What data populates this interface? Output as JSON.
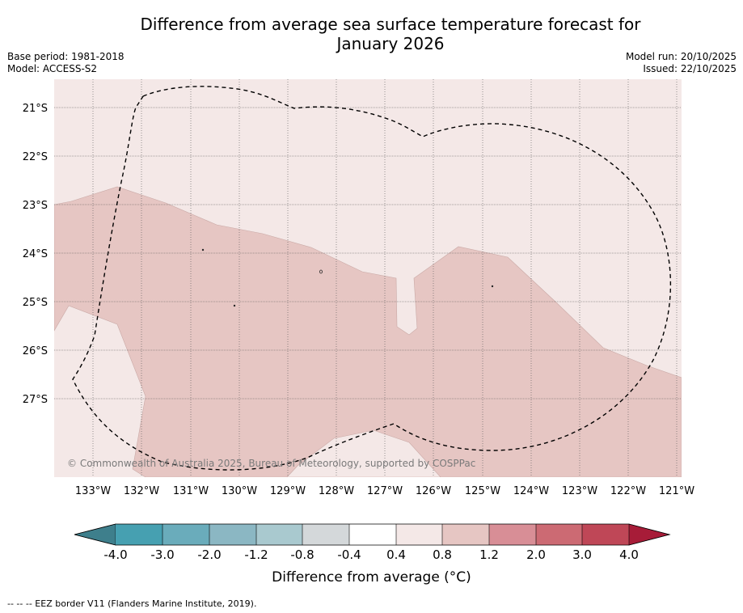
{
  "header": {
    "title_line1": "Difference from average sea surface temperature forecast for",
    "title_line2": "January 2026",
    "base_period": "Base period: 1981-2018",
    "model": "Model: ACCESS-S2",
    "model_run": "Model run: 20/10/2025",
    "issued": "Issued: 22/10/2025"
  },
  "map": {
    "lat_labels": [
      "21°S",
      "22°S",
      "23°S",
      "24°S",
      "25°S",
      "26°S",
      "27°S"
    ],
    "lon_labels": [
      "133°W",
      "132°W",
      "131°W",
      "130°W",
      "129°W",
      "128°W",
      "127°W",
      "126°W",
      "125°W",
      "124°W",
      "123°W",
      "122°W",
      "121°W"
    ],
    "copyright": "© Commonwealth of Australia 2025, Bureau of Meteorology, supported by COSPPac",
    "colors": {
      "anomaly_0_4_to_0_8": "#f4e8e7",
      "anomaly_0_8_to_1_2": "#e6c6c3"
    }
  },
  "colorbar": {
    "tick_labels": [
      "-4.0",
      "-3.0",
      "-2.0",
      "-1.2",
      "-0.8",
      "-0.4",
      "0.4",
      "0.8",
      "1.2",
      "2.0",
      "3.0",
      "4.0"
    ],
    "colors": [
      "#3e7f8c",
      "#46a0b1",
      "#6aacbb",
      "#8bb7c3",
      "#a9c9cf",
      "#d4d8da",
      "#ffffff",
      "#f4e8e7",
      "#e6c6c3",
      "#d88e96",
      "#cc6a73",
      "#bf4757",
      "#a71c38"
    ],
    "title": "Difference from average (°C)"
  },
  "footer": {
    "note": "--  --  -- EEZ border V11 (Flanders Marine Institute, 2019)."
  }
}
